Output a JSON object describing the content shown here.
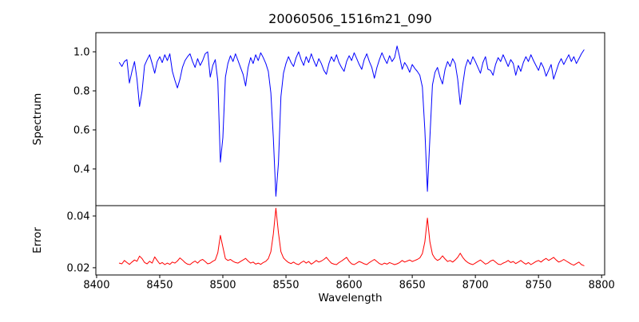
{
  "chart_data": {
    "type": "line",
    "title": "20060506_1516m21_090",
    "xlabel": "Wavelength",
    "grid": false,
    "legend": null,
    "xlim": [
      8399.4,
      8802.4
    ],
    "xticks": [
      8400,
      8450,
      8500,
      8550,
      8600,
      8650,
      8700,
      8750,
      8800
    ],
    "xtick_labels": [
      "8400",
      "8450",
      "8500",
      "8550",
      "8600",
      "8650",
      "8700",
      "8750",
      "8800"
    ],
    "x_start": 8418,
    "x_step": 2,
    "notable_absorption_lines": [
      8434,
      8464,
      8498,
      8518,
      8542,
      8582,
      8621,
      8662,
      8674,
      8688
    ],
    "panels": [
      {
        "name": "spectrum",
        "ylabel": "Spectrum",
        "line_color": "#0000ff",
        "ylim": [
          0.212,
          1.098
        ],
        "yticks": [
          0.4,
          0.6,
          0.8,
          1.0
        ],
        "ytick_labels": [
          "0.4",
          "0.6",
          "0.8",
          "1.0"
        ],
        "values": [
          0.945,
          0.925,
          0.95,
          0.96,
          0.84,
          0.9,
          0.95,
          0.86,
          0.72,
          0.8,
          0.93,
          0.96,
          0.985,
          0.94,
          0.89,
          0.95,
          0.975,
          0.945,
          0.985,
          0.955,
          0.99,
          0.9,
          0.855,
          0.815,
          0.86,
          0.92,
          0.955,
          0.975,
          0.99,
          0.95,
          0.92,
          0.965,
          0.93,
          0.955,
          0.99,
          1.0,
          0.87,
          0.93,
          0.96,
          0.85,
          0.435,
          0.56,
          0.87,
          0.94,
          0.98,
          0.95,
          0.99,
          0.955,
          0.92,
          0.885,
          0.825,
          0.92,
          0.97,
          0.94,
          0.985,
          0.955,
          0.995,
          0.97,
          0.94,
          0.9,
          0.79,
          0.56,
          0.26,
          0.43,
          0.77,
          0.89,
          0.94,
          0.975,
          0.945,
          0.925,
          0.97,
          1.0,
          0.96,
          0.93,
          0.975,
          0.945,
          0.99,
          0.955,
          0.925,
          0.965,
          0.94,
          0.905,
          0.885,
          0.94,
          0.975,
          0.95,
          0.985,
          0.945,
          0.92,
          0.9,
          0.95,
          0.98,
          0.955,
          0.995,
          0.965,
          0.935,
          0.91,
          0.96,
          0.99,
          0.95,
          0.92,
          0.865,
          0.92,
          0.96,
          0.995,
          0.965,
          0.94,
          0.98,
          0.95,
          0.97,
          1.03,
          0.975,
          0.91,
          0.945,
          0.925,
          0.895,
          0.935,
          0.915,
          0.9,
          0.88,
          0.82,
          0.6,
          0.285,
          0.56,
          0.83,
          0.895,
          0.92,
          0.87,
          0.835,
          0.91,
          0.95,
          0.925,
          0.965,
          0.94,
          0.86,
          0.73,
          0.83,
          0.92,
          0.96,
          0.935,
          0.975,
          0.95,
          0.92,
          0.89,
          0.945,
          0.975,
          0.91,
          0.905,
          0.88,
          0.935,
          0.97,
          0.95,
          0.985,
          0.955,
          0.925,
          0.96,
          0.94,
          0.88,
          0.93,
          0.9,
          0.945,
          0.975,
          0.95,
          0.985,
          0.955,
          0.93,
          0.905,
          0.945,
          0.92,
          0.875,
          0.905,
          0.935,
          0.86,
          0.9,
          0.94,
          0.965,
          0.935,
          0.96,
          0.985,
          0.95,
          0.975,
          0.94,
          0.965,
          0.99,
          1.01
        ]
      },
      {
        "name": "error",
        "ylabel": "Error",
        "line_color": "#ff0000",
        "ylim": [
          0.0172,
          0.044
        ],
        "yticks": [
          0.02,
          0.04
        ],
        "ytick_labels": [
          "0.02",
          "0.04"
        ],
        "values": [
          0.0218,
          0.0215,
          0.0228,
          0.022,
          0.0213,
          0.0222,
          0.023,
          0.0225,
          0.0245,
          0.0235,
          0.022,
          0.0215,
          0.0225,
          0.0218,
          0.0242,
          0.0228,
          0.0215,
          0.022,
          0.0212,
          0.0218,
          0.0213,
          0.0222,
          0.0218,
          0.0226,
          0.0238,
          0.023,
          0.022,
          0.0214,
          0.0212,
          0.022,
          0.0226,
          0.0218,
          0.0228,
          0.0232,
          0.0224,
          0.0215,
          0.0218,
          0.0225,
          0.023,
          0.0258,
          0.0325,
          0.028,
          0.0235,
          0.0228,
          0.0232,
          0.0225,
          0.022,
          0.0218,
          0.0224,
          0.023,
          0.0236,
          0.0226,
          0.0218,
          0.0222,
          0.0214,
          0.0218,
          0.0213,
          0.022,
          0.0225,
          0.0235,
          0.0262,
          0.033,
          0.043,
          0.0335,
          0.0262,
          0.0238,
          0.0228,
          0.022,
          0.0216,
          0.0222,
          0.0215,
          0.0212,
          0.022,
          0.0226,
          0.0218,
          0.0224,
          0.0214,
          0.022,
          0.0228,
          0.0222,
          0.0226,
          0.0232,
          0.024,
          0.0228,
          0.0218,
          0.0214,
          0.0212,
          0.022,
          0.0226,
          0.0233,
          0.024,
          0.0225,
          0.0215,
          0.0212,
          0.0218,
          0.0224,
          0.022,
          0.0215,
          0.0212,
          0.022,
          0.0226,
          0.0232,
          0.0224,
          0.0216,
          0.0212,
          0.0218,
          0.0214,
          0.022,
          0.0216,
          0.0212,
          0.0215,
          0.022,
          0.0228,
          0.0222,
          0.0226,
          0.023,
          0.0224,
          0.0228,
          0.0232,
          0.0238,
          0.0255,
          0.03,
          0.0392,
          0.03,
          0.0252,
          0.0236,
          0.0228,
          0.0234,
          0.0246,
          0.0234,
          0.0224,
          0.0228,
          0.0222,
          0.023,
          0.024,
          0.0256,
          0.024,
          0.0228,
          0.022,
          0.0215,
          0.0212,
          0.0218,
          0.0224,
          0.023,
          0.0222,
          0.0214,
          0.0218,
          0.0226,
          0.023,
          0.0222,
          0.0214,
          0.0212,
          0.0218,
          0.0222,
          0.0228,
          0.022,
          0.0224,
          0.0216,
          0.0222,
          0.0228,
          0.022,
          0.0214,
          0.022,
          0.0212,
          0.0218,
          0.0224,
          0.0228,
          0.0222,
          0.023,
          0.0236,
          0.0228,
          0.0234,
          0.024,
          0.023,
          0.0222,
          0.0226,
          0.0232,
          0.0226,
          0.022,
          0.0214,
          0.021,
          0.0216,
          0.0222,
          0.0212,
          0.0208
        ]
      }
    ],
    "colors": {
      "background": "#ffffff",
      "axis": "#000000",
      "text": "#000000"
    }
  }
}
